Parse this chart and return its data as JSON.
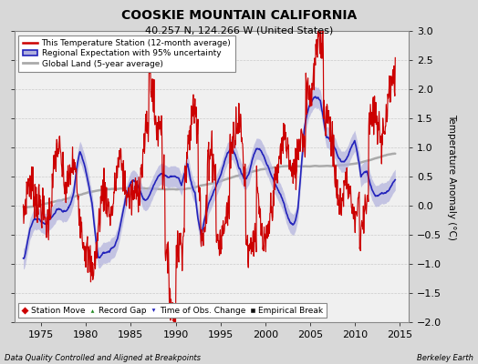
{
  "title": "COOSKIE MOUNTAIN CALIFORNIA",
  "subtitle": "40.257 N, 124.266 W (United States)",
  "ylabel": "Temperature Anomaly (°C)",
  "footer_left": "Data Quality Controlled and Aligned at Breakpoints",
  "footer_right": "Berkeley Earth",
  "xlim": [
    1972,
    2016
  ],
  "ylim": [
    -2,
    3
  ],
  "yticks": [
    -2,
    -1.5,
    -1,
    -0.5,
    0,
    0.5,
    1,
    1.5,
    2,
    2.5,
    3
  ],
  "xticks": [
    1975,
    1980,
    1985,
    1990,
    1995,
    2000,
    2005,
    2010,
    2015
  ],
  "bg_color": "#d8d8d8",
  "plot_bg_color": "#f0f0f0",
  "grid_color": "#cccccc",
  "station_color": "#cc0000",
  "regional_color": "#2222bb",
  "regional_fill_color": "#b0b0dd",
  "global_color": "#aaaaaa",
  "legend_items": [
    {
      "label": "This Temperature Station (12-month average)",
      "color": "#cc0000",
      "lw": 1.5
    },
    {
      "label": "Regional Expectation with 95% uncertainty",
      "color": "#2222bb",
      "lw": 1.5
    },
    {
      "label": "Global Land (5-year average)",
      "color": "#aaaaaa",
      "lw": 2.0
    }
  ],
  "marker_legend": [
    {
      "label": "Station Move",
      "color": "#cc0000",
      "marker": "D"
    },
    {
      "label": "Record Gap",
      "color": "#228822",
      "marker": "^"
    },
    {
      "label": "Time of Obs. Change",
      "color": "#2222bb",
      "marker": "v"
    },
    {
      "label": "Empirical Break",
      "color": "#111111",
      "marker": "s"
    }
  ]
}
